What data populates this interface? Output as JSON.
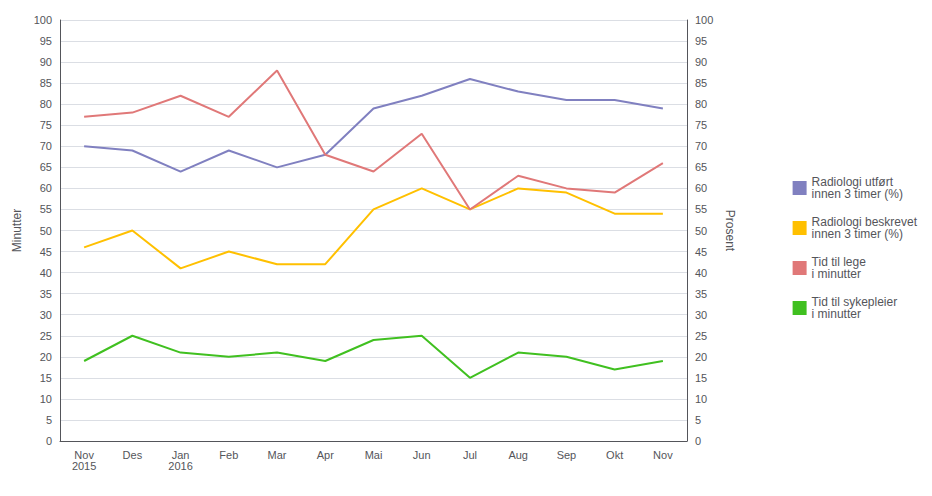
{
  "chart_data": {
    "type": "line",
    "categories": [
      "Nov\n2015",
      "Des",
      "Jan\n2016",
      "Feb",
      "Mar",
      "Apr",
      "Mai",
      "Jun",
      "Jul",
      "Aug",
      "Sep",
      "Okt",
      "Nov"
    ],
    "series": [
      {
        "name": "Radiologi utført\ninnen 3 timer (%)",
        "color": "#8080c0",
        "axis": "y2",
        "values": [
          70,
          69,
          64,
          69,
          65,
          68,
          79,
          82,
          86,
          83,
          81,
          81,
          79
        ]
      },
      {
        "name": "Radiologi beskrevet\ninnen 3 timer (%)",
        "color": "#ffc000",
        "axis": "y2",
        "values": [
          46,
          50,
          41,
          45,
          42,
          42,
          55,
          60,
          55,
          60,
          59,
          54,
          54
        ]
      },
      {
        "name": "Tid til lege\ni minutter",
        "color": "#e07878",
        "values": [
          77,
          78,
          82,
          77,
          88,
          68,
          64,
          73,
          55,
          63,
          60,
          59,
          66
        ]
      },
      {
        "name": "Tid til sykepleier\ni minutter",
        "color": "#40c020",
        "values": [
          19,
          25,
          21,
          20,
          21,
          19,
          24,
          25,
          15,
          21,
          20,
          17,
          19
        ]
      }
    ],
    "ylabel": "Minutter",
    "y2label": "Prosent",
    "ylim": [
      0,
      100
    ],
    "yticks": [
      0,
      5,
      10,
      15,
      20,
      25,
      30,
      35,
      40,
      45,
      50,
      55,
      60,
      65,
      70,
      75,
      80,
      85,
      90,
      95,
      100
    ],
    "y2lim": [
      0,
      100
    ],
    "y2ticks": [
      0,
      5,
      10,
      15,
      20,
      25,
      30,
      35,
      40,
      45,
      50,
      55,
      60,
      65,
      70,
      75,
      80,
      85,
      90,
      95,
      100
    ],
    "grid": true,
    "legend": "right"
  }
}
